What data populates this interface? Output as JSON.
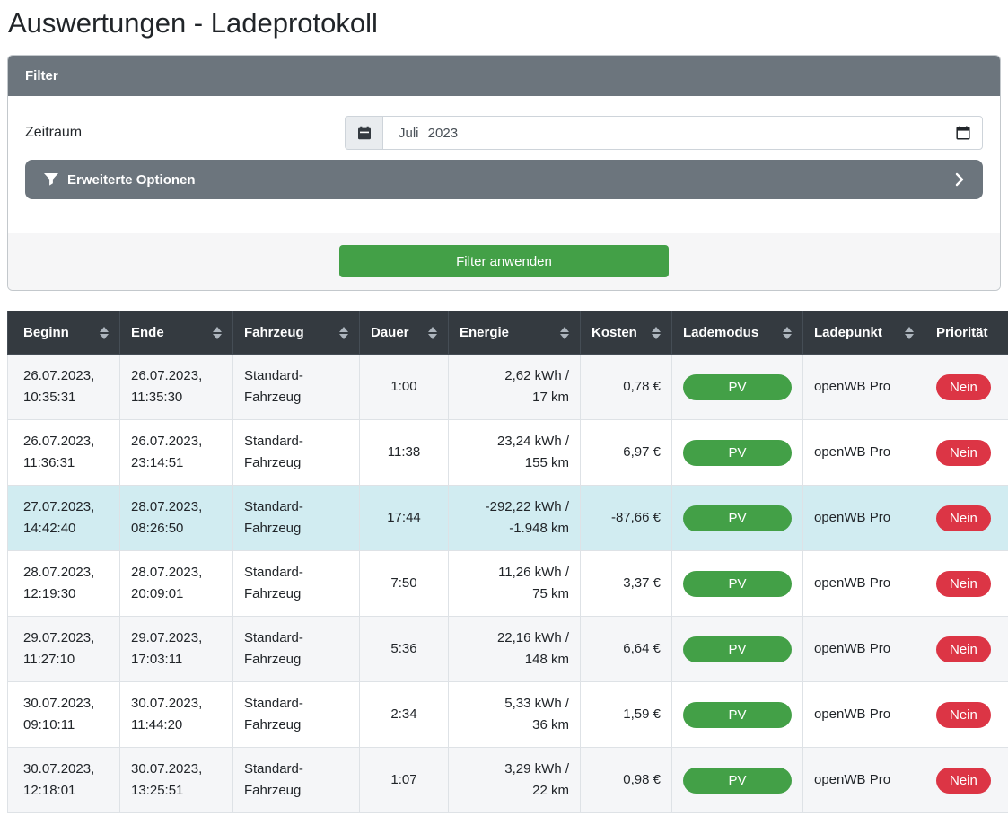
{
  "colors": {
    "green": "#43a047",
    "red": "#dc3545",
    "header_bg": "#343a40",
    "panel_gray": "#6c757d",
    "highlight_row": "#d1ecf1",
    "stripe_row": "#f5f6f8"
  },
  "page": {
    "title": "Auswertungen - Ladeprotokoll"
  },
  "filter": {
    "header_title": "Filter",
    "zeitraum_label": "Zeitraum",
    "zeitraum_value": "Juli 2023",
    "advanced_options_label": "Erweiterte Optionen",
    "apply_button_label": "Filter anwenden"
  },
  "table": {
    "columns": [
      {
        "key": "beginn",
        "label": "Beginn",
        "sort_icon": true
      },
      {
        "key": "ende",
        "label": "Ende",
        "sort_icon": true
      },
      {
        "key": "fahrzeug",
        "label": "Fahrzeug",
        "sort_icon": true
      },
      {
        "key": "dauer",
        "label": "Dauer",
        "sort_icon": true
      },
      {
        "key": "energie",
        "label": "Energie",
        "sort_icon": true
      },
      {
        "key": "kosten",
        "label": "Kosten",
        "sort_icon": true
      },
      {
        "key": "lademodus",
        "label": "Lademodus",
        "sort_icon": true
      },
      {
        "key": "ladepunkt",
        "label": "Ladepunkt",
        "sort_icon": true
      },
      {
        "key": "prioritaet",
        "label": "Priorität",
        "sort_icon": false
      }
    ],
    "rows": [
      {
        "beginn": "26.07.2023, 10:35:31",
        "ende": "26.07.2023, 11:35:30",
        "fahrzeug": "Standard-Fahrzeug",
        "dauer": "1:00",
        "energie": "2,62 kWh / 17 km",
        "kosten": "0,78 €",
        "lademodus": "PV",
        "ladepunkt": "openWB Pro",
        "prioritaet": "Nein",
        "highlighted": false
      },
      {
        "beginn": "26.07.2023, 11:36:31",
        "ende": "26.07.2023, 23:14:51",
        "fahrzeug": "Standard-Fahrzeug",
        "dauer": "11:38",
        "energie": "23,24 kWh / 155 km",
        "kosten": "6,97 €",
        "lademodus": "PV",
        "ladepunkt": "openWB Pro",
        "prioritaet": "Nein",
        "highlighted": false
      },
      {
        "beginn": "27.07.2023, 14:42:40",
        "ende": "28.07.2023, 08:26:50",
        "fahrzeug": "Standard-Fahrzeug",
        "dauer": "17:44",
        "energie": "-292,22 kWh / -1.948 km",
        "kosten": "-87,66 €",
        "lademodus": "PV",
        "ladepunkt": "openWB Pro",
        "prioritaet": "Nein",
        "highlighted": true
      },
      {
        "beginn": "28.07.2023, 12:19:30",
        "ende": "28.07.2023, 20:09:01",
        "fahrzeug": "Standard-Fahrzeug",
        "dauer": "7:50",
        "energie": "11,26 kWh / 75 km",
        "kosten": "3,37 €",
        "lademodus": "PV",
        "ladepunkt": "openWB Pro",
        "prioritaet": "Nein",
        "highlighted": false
      },
      {
        "beginn": "29.07.2023, 11:27:10",
        "ende": "29.07.2023, 17:03:11",
        "fahrzeug": "Standard-Fahrzeug",
        "dauer": "5:36",
        "energie": "22,16 kWh / 148 km",
        "kosten": "6,64 €",
        "lademodus": "PV",
        "ladepunkt": "openWB Pro",
        "prioritaet": "Nein",
        "highlighted": false
      },
      {
        "beginn": "30.07.2023, 09:10:11",
        "ende": "30.07.2023, 11:44:20",
        "fahrzeug": "Standard-Fahrzeug",
        "dauer": "2:34",
        "energie": "5,33 kWh / 36 km",
        "kosten": "1,59 €",
        "lademodus": "PV",
        "ladepunkt": "openWB Pro",
        "prioritaet": "Nein",
        "highlighted": false
      },
      {
        "beginn": "30.07.2023, 12:18:01",
        "ende": "30.07.2023, 13:25:51",
        "fahrzeug": "Standard-Fahrzeug",
        "dauer": "1:07",
        "energie": "3,29 kWh / 22 km",
        "kosten": "0,98 €",
        "lademodus": "PV",
        "ladepunkt": "openWB Pro",
        "prioritaet": "Nein",
        "highlighted": false
      }
    ]
  }
}
